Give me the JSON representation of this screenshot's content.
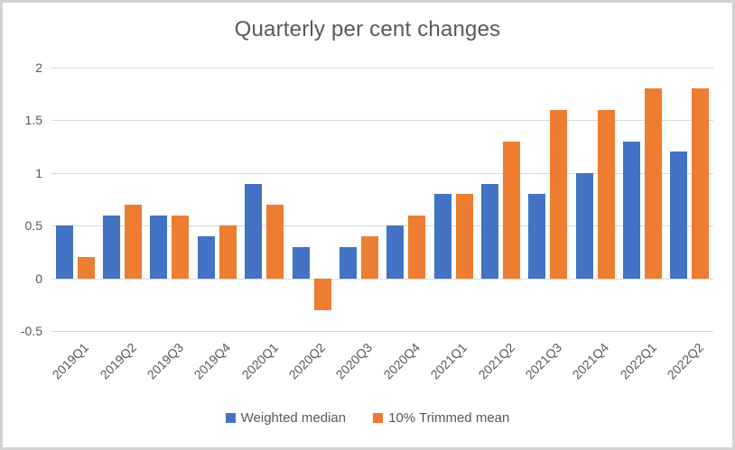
{
  "chart_data": {
    "type": "bar",
    "title": "Quarterly per cent changes",
    "xlabel": "",
    "ylabel": "",
    "categories": [
      "2019Q1",
      "2019Q2",
      "2019Q3",
      "2019Q4",
      "2020Q1",
      "2020Q2",
      "2020Q3",
      "2020Q4",
      "2021Q1",
      "2021Q2",
      "2021Q3",
      "2021Q4",
      "2022Q1",
      "2022Q2"
    ],
    "series": [
      {
        "name": "Weighted median",
        "color": "#4472C4",
        "values": [
          0.5,
          0.6,
          0.6,
          0.4,
          0.9,
          0.3,
          0.3,
          0.5,
          0.8,
          0.9,
          0.8,
          1.0,
          1.3,
          1.2
        ]
      },
      {
        "name": "10% Trimmed mean",
        "color": "#ED7D31",
        "values": [
          0.2,
          0.7,
          0.6,
          0.5,
          0.7,
          -0.3,
          0.4,
          0.6,
          0.8,
          1.3,
          1.6,
          1.6,
          1.8,
          1.8
        ]
      }
    ],
    "ylim": [
      -0.5,
      2
    ],
    "yticks": [
      2,
      1.5,
      1,
      0.5,
      0,
      -0.5
    ],
    "grid": true,
    "legend_position": "bottom",
    "text_color": "#595959",
    "gridline_color": "#d9d9d9"
  }
}
